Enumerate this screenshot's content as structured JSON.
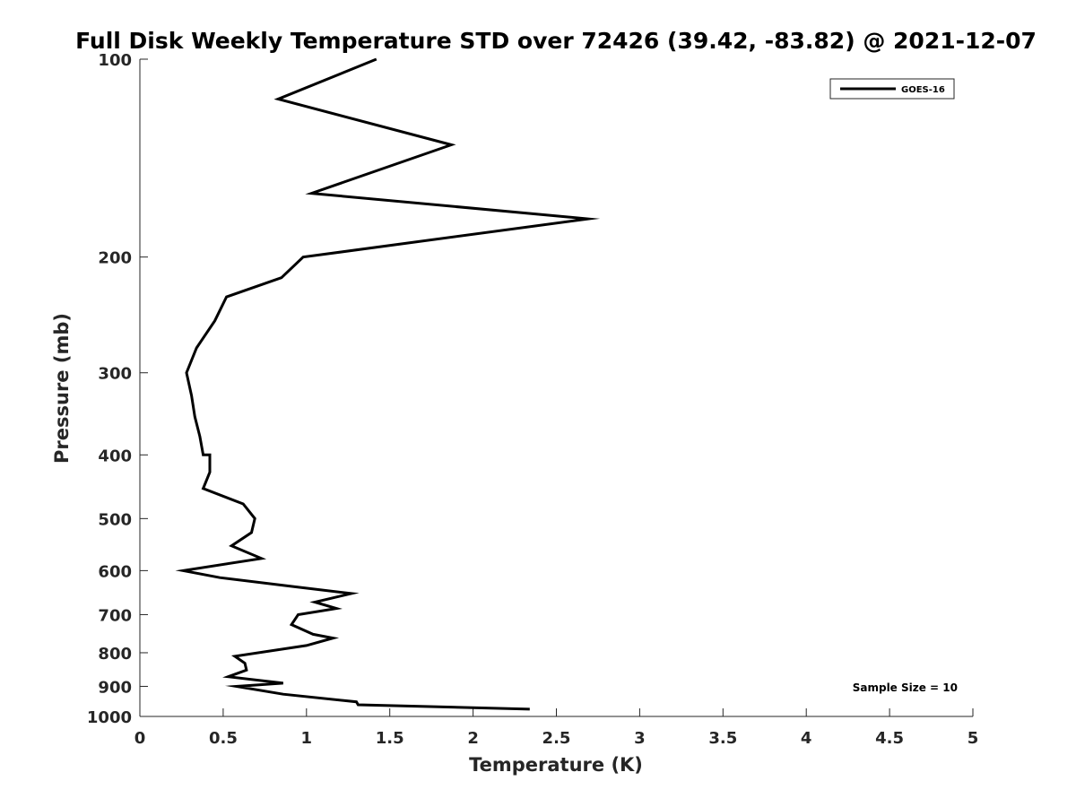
{
  "chart_data": {
    "type": "line",
    "title": "Full Disk Weekly Temperature STD over 72426 (39.42, -83.82) @ 2021-12-07",
    "xlabel": "Temperature (K)",
    "ylabel": "Pressure (mb)",
    "xlim": [
      0,
      5
    ],
    "ylim": [
      100,
      1000
    ],
    "y_scale": "log",
    "y_reversed": true,
    "x_ticks": [
      "0",
      "0.5",
      "1",
      "1.5",
      "2",
      "2.5",
      "3",
      "3.5",
      "4",
      "4.5",
      "5"
    ],
    "y_ticks": [
      "100",
      "200",
      "300",
      "400",
      "500",
      "600",
      "700",
      "800",
      "900",
      "1000"
    ],
    "legend_position": "top-right",
    "annotation": "Sample Size = 10",
    "series": [
      {
        "name": "GOES-16",
        "color": "#000000",
        "points": [
          [
            1.42,
            100
          ],
          [
            0.83,
            115
          ],
          [
            1.87,
            135
          ],
          [
            1.03,
            160
          ],
          [
            2.69,
            175
          ],
          [
            0.98,
            200
          ],
          [
            0.85,
            215
          ],
          [
            0.52,
            230
          ],
          [
            0.45,
            250
          ],
          [
            0.34,
            275
          ],
          [
            0.28,
            300
          ],
          [
            0.31,
            325
          ],
          [
            0.33,
            350
          ],
          [
            0.36,
            375
          ],
          [
            0.38,
            400
          ],
          [
            0.42,
            400
          ],
          [
            0.42,
            425
          ],
          [
            0.38,
            450
          ],
          [
            0.62,
            475
          ],
          [
            0.69,
            500
          ],
          [
            0.67,
            525
          ],
          [
            0.55,
            550
          ],
          [
            0.73,
            575
          ],
          [
            0.26,
            600
          ],
          [
            0.48,
            615
          ],
          [
            0.93,
            635
          ],
          [
            1.27,
            650
          ],
          [
            1.05,
            670
          ],
          [
            1.18,
            685
          ],
          [
            0.95,
            700
          ],
          [
            0.91,
            725
          ],
          [
            1.04,
            750
          ],
          [
            1.16,
            760
          ],
          [
            1.0,
            780
          ],
          [
            0.57,
            810
          ],
          [
            0.63,
            830
          ],
          [
            0.64,
            850
          ],
          [
            0.53,
            870
          ],
          [
            0.86,
            890
          ],
          [
            0.58,
            900
          ],
          [
            0.86,
            925
          ],
          [
            1.3,
            950
          ],
          [
            1.31,
            960
          ],
          [
            2.34,
            975
          ]
        ]
      }
    ]
  }
}
